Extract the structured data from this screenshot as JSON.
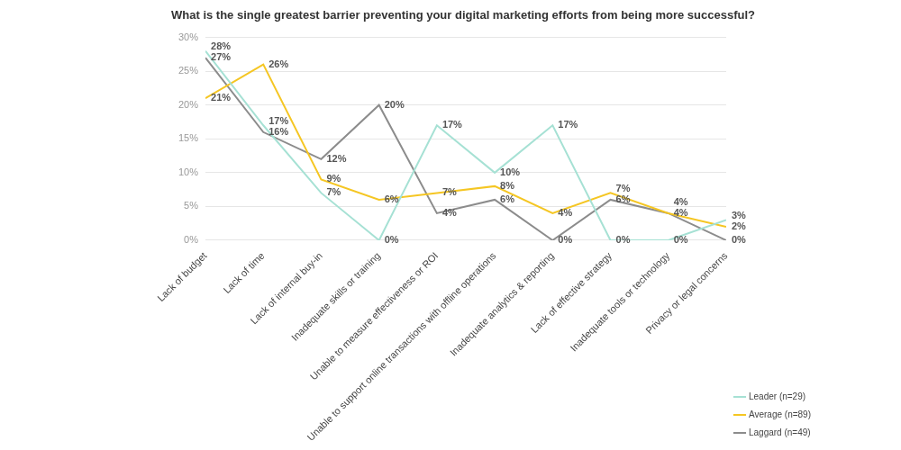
{
  "chart_data": {
    "type": "line",
    "title": "What is the single greatest barrier preventing your digital marketing efforts from being more successful?",
    "categories": [
      "Lack of budget",
      "Lack of time",
      "Lack of internal buy-in",
      "Inadequate skills or training",
      "Unable to measure effectiveness or ROI",
      "Unable to support online transactions with offline operations",
      "Inadequate analytics & reporting",
      "Lack of effective strategy",
      "Inadequate tools or technology",
      "Privacy or legal concerns"
    ],
    "series": [
      {
        "name": "Leader (n=29)",
        "color": "#a6e1d4",
        "values": [
          28,
          17,
          7,
          0,
          17,
          10,
          17,
          0,
          0,
          3
        ],
        "value_labels": [
          "28%",
          "17%",
          "7%",
          "0%",
          "17%",
          "10%",
          "17%",
          "0%",
          "0%",
          "3%"
        ]
      },
      {
        "name": "Average (n=89)",
        "color": "#f5c623",
        "values": [
          21,
          26,
          9,
          6,
          7,
          8,
          4,
          7,
          4,
          2
        ],
        "value_labels": [
          "21%",
          "26%",
          "9%",
          "6%",
          "7%",
          "8%",
          "4%",
          "7%",
          "4%",
          "2%"
        ]
      },
      {
        "name": "Laggard (n=49)",
        "color": "#8c8c8c",
        "values": [
          27,
          16,
          12,
          20,
          4,
          6,
          0,
          6,
          4,
          0
        ],
        "value_labels": [
          "27%",
          "16%",
          "12%",
          "20%",
          "4%",
          "6%",
          "0%",
          "6%",
          "4%",
          "0%"
        ]
      }
    ],
    "ylim": [
      0,
      30
    ],
    "yticks": [
      {
        "value": 0,
        "label": "0%"
      },
      {
        "value": 5,
        "label": "5%"
      },
      {
        "value": 10,
        "label": "10%"
      },
      {
        "value": 15,
        "label": "15%"
      },
      {
        "value": 20,
        "label": "20%"
      },
      {
        "value": 25,
        "label": "25%"
      },
      {
        "value": 30,
        "label": "30%"
      }
    ],
    "grid": true,
    "legend": "right",
    "data_labels": true
  }
}
